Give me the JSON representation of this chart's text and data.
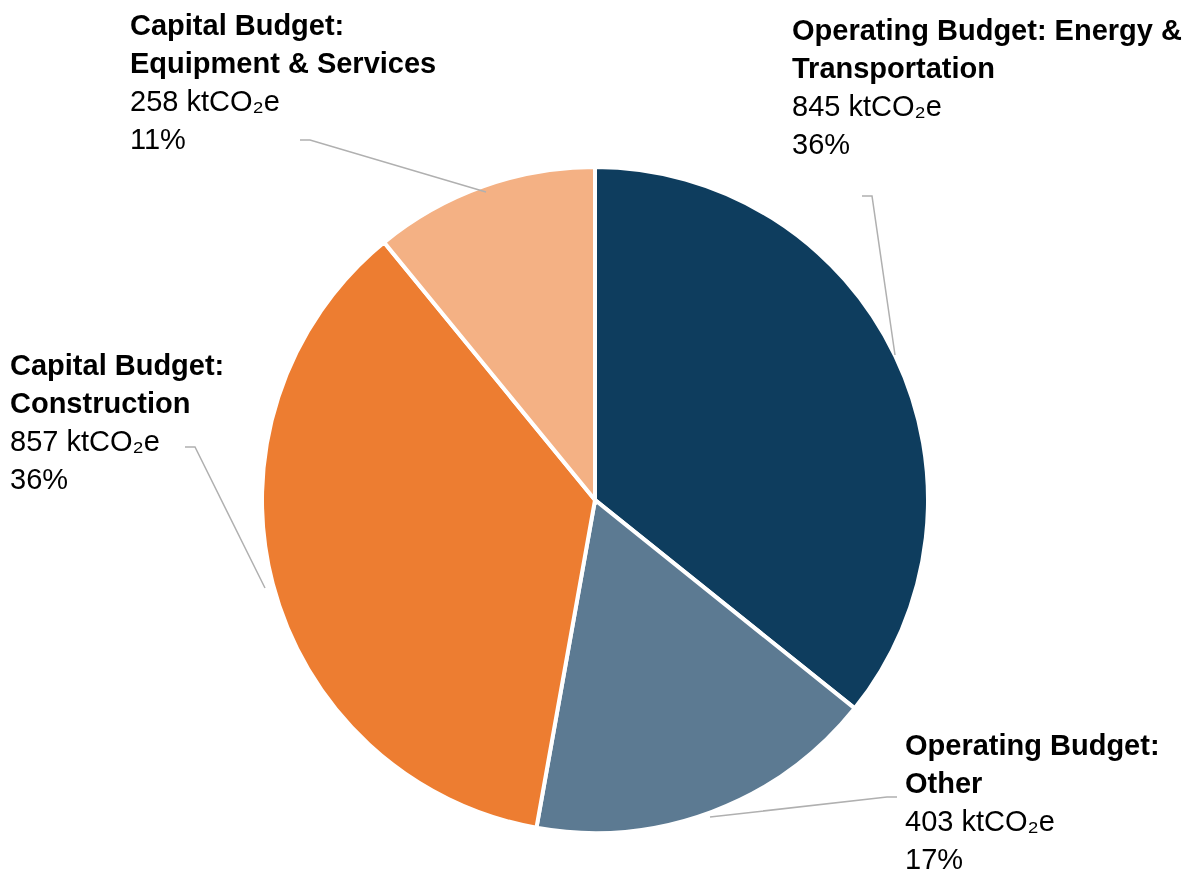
{
  "chart_data": {
    "type": "pie",
    "categories": [
      "Operating Budget: Energy & Transportation",
      "Operating Budget: Other",
      "Capital Budget: Construction",
      "Capital Budget: Equipment & Services"
    ],
    "values": [
      845,
      403,
      857,
      258
    ],
    "colors": [
      "#0e3d5e",
      "#5c7a92",
      "#ed7d31",
      "#f4b184"
    ],
    "value_labels": [
      "845 ktCO₂e\n36%",
      "403 ktCO₂e\n17%",
      "857 ktCO₂e\n36%",
      "258 ktCO₂e\n11%"
    ]
  }
}
